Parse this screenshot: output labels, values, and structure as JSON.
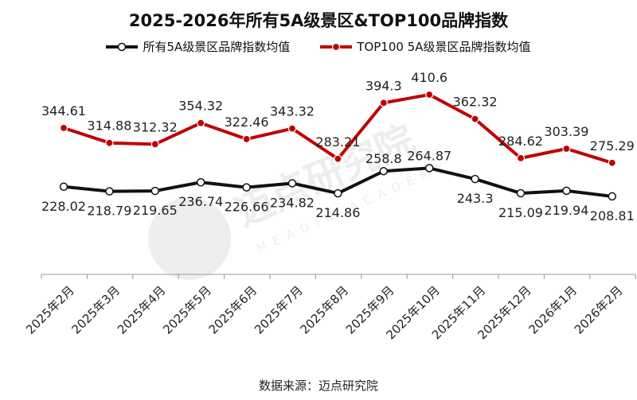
{
  "chart_data": {
    "type": "line",
    "title": "2025-2026年所有5A级景区&TOP100品牌指数",
    "categories": [
      "2025年2月",
      "2025年3月",
      "2025年4月",
      "2025年5月",
      "2025年6月",
      "2025年7月",
      "2025年8月",
      "2025年9月",
      "2025年10月",
      "2025年11月",
      "2025年12月",
      "2026年1月",
      "2026年2月"
    ],
    "series": [
      {
        "name": "所有5A级景区品牌指数均值",
        "color": "#111111",
        "values": [
          228.02,
          218.79,
          219.65,
          236.74,
          226.66,
          234.82,
          214.86,
          258.8,
          264.87,
          243.3,
          215.09,
          219.94,
          208.81
        ],
        "labels": [
          "228.02",
          "218.79",
          "219.65",
          "236.74",
          "226.66",
          "234.82",
          "214.86",
          "258.8",
          "264.87",
          "243.3",
          "215.09",
          "219.94",
          "208.81"
        ]
      },
      {
        "name": "TOP100 5A级景区品牌指数均值",
        "color": "#c00000",
        "values": [
          344.61,
          314.88,
          312.32,
          354.32,
          322.46,
          343.32,
          283.21,
          394.3,
          410.6,
          362.32,
          284.62,
          303.39,
          275.29
        ],
        "labels": [
          "344.61",
          "314.88",
          "312.32",
          "354.32",
          "322.46",
          "343.32",
          "283.21",
          "394.3",
          "410.6",
          "362.32",
          "284.62",
          "303.39",
          "275.29"
        ]
      }
    ],
    "xlabel": "",
    "ylabel": "",
    "grid": false,
    "legend_position": "top-center"
  },
  "watermark": {
    "text": "迈点研究院",
    "subtext": "MEADIN ACADEMY"
  },
  "source": "数据来源：迈点研究院"
}
